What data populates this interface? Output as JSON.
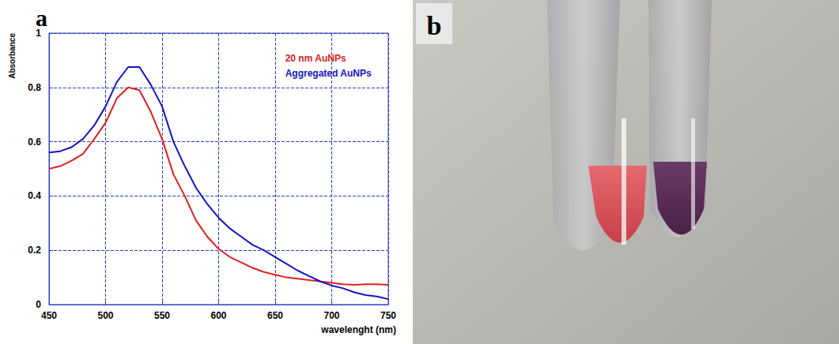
{
  "chart_data": {
    "type": "line",
    "panel": "a",
    "x_label": "wavelenght (nm)",
    "y_label": "Absorbance",
    "x": [
      450,
      460,
      470,
      480,
      490,
      500,
      510,
      520,
      530,
      540,
      550,
      560,
      570,
      580,
      590,
      600,
      610,
      620,
      630,
      640,
      650,
      660,
      670,
      680,
      690,
      700,
      710,
      720,
      730,
      740,
      750
    ],
    "series": [
      {
        "name": "20 nm AuNPs",
        "color": "#e02020",
        "values": [
          0.5,
          0.51,
          0.53,
          0.555,
          0.61,
          0.67,
          0.76,
          0.8,
          0.79,
          0.71,
          0.61,
          0.48,
          0.4,
          0.31,
          0.25,
          0.205,
          0.175,
          0.155,
          0.135,
          0.12,
          0.11,
          0.1,
          0.095,
          0.09,
          0.085,
          0.08,
          0.075,
          0.073,
          0.075,
          0.075,
          0.073
        ]
      },
      {
        "name": "Aggregated AuNPs",
        "color": "#1414c8",
        "values": [
          0.56,
          0.565,
          0.58,
          0.61,
          0.66,
          0.73,
          0.82,
          0.875,
          0.875,
          0.81,
          0.73,
          0.6,
          0.51,
          0.43,
          0.37,
          0.32,
          0.28,
          0.25,
          0.22,
          0.2,
          0.175,
          0.15,
          0.125,
          0.105,
          0.085,
          0.07,
          0.06,
          0.045,
          0.035,
          0.03,
          0.02
        ]
      }
    ],
    "xlim": [
      450,
      750
    ],
    "xticks": [
      450,
      500,
      550,
      600,
      650,
      700,
      750
    ],
    "ylim": [
      0,
      1
    ],
    "yticks": [
      0,
      0.2,
      0.4,
      0.6,
      0.8,
      1
    ],
    "grid": true,
    "legend": "upper right"
  },
  "photo": {
    "panel": "b"
  }
}
